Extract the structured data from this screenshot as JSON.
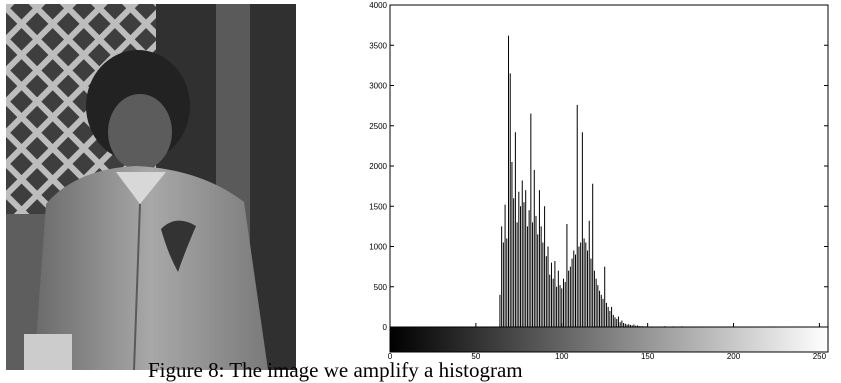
{
  "caption": "Figure 8: The image we amplify a histogram",
  "photo": {
    "description_icon": "grayscale-photo-child-in-jacket"
  },
  "chart_data": {
    "type": "bar",
    "title": "",
    "xlabel": "",
    "ylabel": "",
    "xlim": [
      0,
      255
    ],
    "ylim": [
      0,
      4000
    ],
    "grid": false,
    "x_ticks": [
      "0",
      "50",
      "100",
      "150",
      "200",
      "250"
    ],
    "y_ticks": [
      "0",
      "500",
      "1000",
      "1500",
      "2000",
      "2500",
      "3000",
      "3500",
      "4000"
    ],
    "colorbar": "grayscale gradient 0 to 255 below x axis",
    "bar_color": "#000000",
    "x": [
      64,
      65,
      66,
      67,
      68,
      69,
      70,
      71,
      72,
      73,
      74,
      75,
      76,
      77,
      78,
      79,
      80,
      81,
      82,
      83,
      84,
      85,
      86,
      87,
      88,
      89,
      90,
      91,
      92,
      93,
      94,
      95,
      96,
      97,
      98,
      99,
      100,
      101,
      102,
      103,
      104,
      105,
      106,
      107,
      108,
      109,
      110,
      111,
      112,
      113,
      114,
      115,
      116,
      117,
      118,
      119,
      120,
      121,
      122,
      123,
      124,
      125,
      126,
      127,
      128,
      129,
      130,
      131,
      132,
      133,
      134,
      135,
      136,
      137,
      138,
      139,
      140,
      141,
      142,
      143,
      144,
      145,
      146,
      147,
      148,
      149,
      150,
      151,
      152,
      153,
      154,
      155,
      160,
      165,
      170,
      180
    ],
    "values": [
      400,
      1250,
      1050,
      1520,
      1100,
      3620,
      3150,
      2050,
      1600,
      2420,
      1300,
      1680,
      1500,
      1820,
      1550,
      1700,
      1250,
      1450,
      2650,
      1300,
      1950,
      1380,
      1150,
      1700,
      1250,
      1050,
      1500,
      880,
      1000,
      650,
      800,
      600,
      820,
      500,
      700,
      520,
      480,
      600,
      560,
      1280,
      700,
      750,
      850,
      950,
      900,
      2760,
      1000,
      1050,
      2420,
      1100,
      1050,
      950,
      1320,
      850,
      1780,
      700,
      600,
      520,
      450,
      400,
      350,
      750,
      300,
      250,
      200,
      250,
      150,
      120,
      100,
      130,
      60,
      80,
      50,
      40,
      30,
      35,
      25,
      20,
      30,
      15,
      20,
      12,
      10,
      10,
      8,
      8,
      6,
      6,
      5,
      5,
      4,
      4,
      10,
      8,
      10,
      6
    ]
  }
}
